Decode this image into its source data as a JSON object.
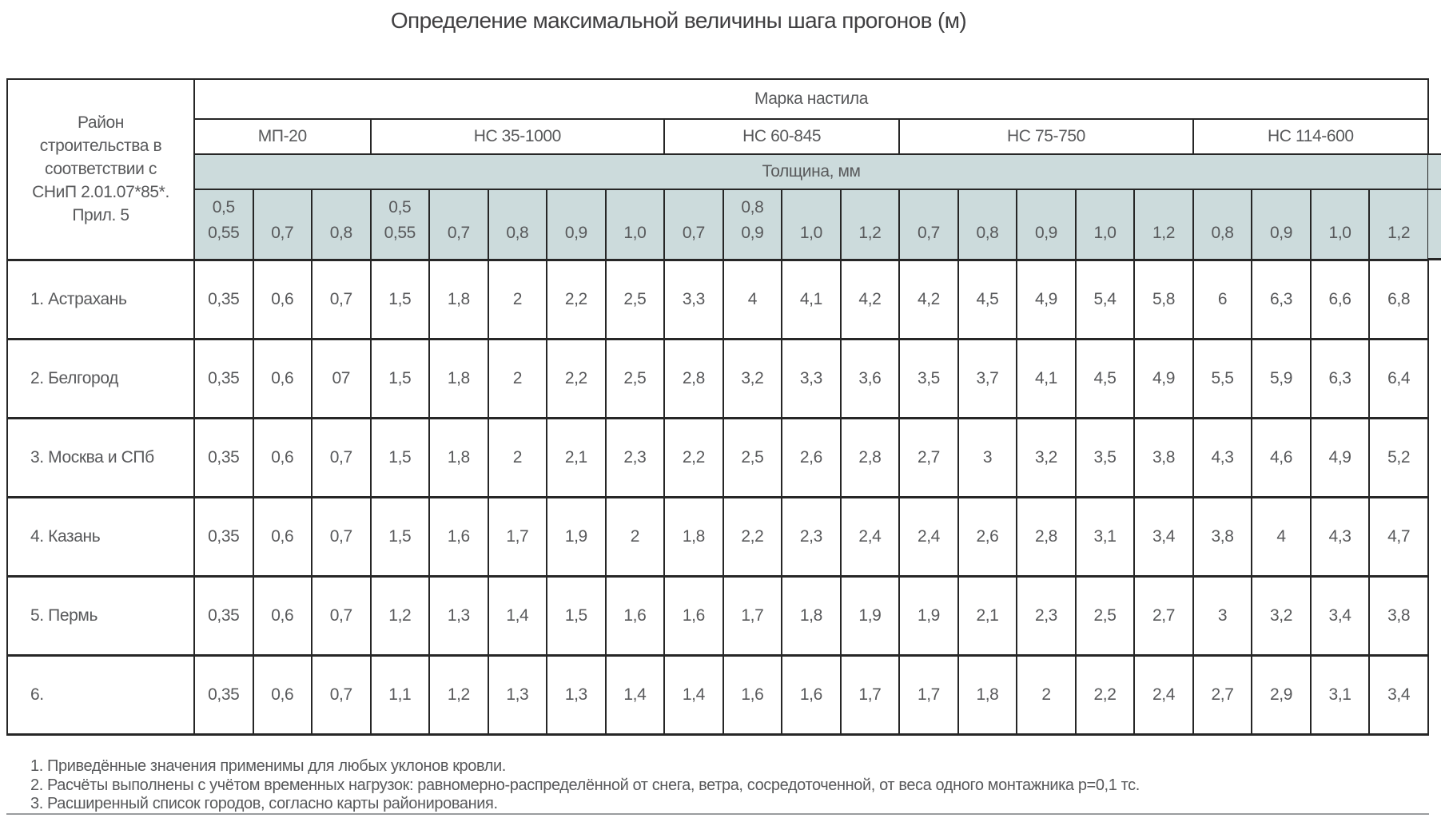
{
  "title": "Определение максимальной величины шага прогонов (м)",
  "table": {
    "row_header": "Район\nстроительства в\nсоответствии с\nСНиП 2.01.07*85*.\nПрил. 5",
    "top_header": "Марка настила",
    "thickness_header": "Толщина, мм",
    "groups": [
      {
        "label": "МП-20",
        "thicknesses": [
          "0,5\n0,55",
          "0,7",
          "0,8"
        ]
      },
      {
        "label": "НС 35-1000",
        "thicknesses": [
          "0,5\n0,55",
          "0,7",
          "0,8",
          "0,9",
          "1,0"
        ]
      },
      {
        "label": "НС 60-845",
        "thicknesses": [
          "0,7",
          "0,8\n0,9",
          "1,0",
          "1,2"
        ]
      },
      {
        "label": "НС 75-750",
        "thicknesses": [
          "0,7",
          "0,8",
          "0,9",
          "1,0",
          "1,2"
        ]
      },
      {
        "label": "НС 114-600",
        "thicknesses": [
          "0,8",
          "0,9",
          "1,0",
          "1,2"
        ]
      }
    ],
    "rows": [
      {
        "label": "1. Астрахань",
        "values": [
          "0,35",
          "0,6",
          "0,7",
          "1,5",
          "1,8",
          "2",
          "2,2",
          "2,5",
          "3,3",
          "4",
          "4,1",
          "4,2",
          "4,2",
          "4,5",
          "4,9",
          "5,4",
          "5,8",
          "6",
          "6,3",
          "6,6",
          "6,8"
        ]
      },
      {
        "label": "2. Белгород",
        "values": [
          "0,35",
          "0,6",
          "07",
          "1,5",
          "1,8",
          "2",
          "2,2",
          "2,5",
          "2,8",
          "3,2",
          "3,3",
          "3,6",
          "3,5",
          "3,7",
          "4,1",
          "4,5",
          "4,9",
          "5,5",
          "5,9",
          "6,3",
          "6,4"
        ]
      },
      {
        "label": "3. Москва и СПб",
        "values": [
          "0,35",
          "0,6",
          "0,7",
          "1,5",
          "1,8",
          "2",
          "2,1",
          "2,3",
          "2,2",
          "2,5",
          "2,6",
          "2,8",
          "2,7",
          "3",
          "3,2",
          "3,5",
          "3,8",
          "4,3",
          "4,6",
          "4,9",
          "5,2"
        ]
      },
      {
        "label": "4. Казань",
        "values": [
          "0,35",
          "0,6",
          "0,7",
          "1,5",
          "1,6",
          "1,7",
          "1,9",
          "2",
          "1,8",
          "2,2",
          "2,3",
          "2,4",
          "2,4",
          "2,6",
          "2,8",
          "3,1",
          "3,4",
          "3,8",
          "4",
          "4,3",
          "4,7"
        ]
      },
      {
        "label": "5. Пермь",
        "values": [
          "0,35",
          "0,6",
          "0,7",
          "1,2",
          "1,3",
          "1,4",
          "1,5",
          "1,6",
          "1,6",
          "1,7",
          "1,8",
          "1,9",
          "1,9",
          "2,1",
          "2,3",
          "2,5",
          "2,7",
          "3",
          "3,2",
          "3,4",
          "3,8"
        ]
      },
      {
        "label": "6.",
        "values": [
          "0,35",
          "0,6",
          "0,7",
          "1,1",
          "1,2",
          "1,3",
          "1,3",
          "1,4",
          "1,4",
          "1,6",
          "1,6",
          "1,7",
          "1,7",
          "1,8",
          "2",
          "2,2",
          "2,4",
          "2,7",
          "2,9",
          "3,1",
          "3,4"
        ]
      }
    ]
  },
  "footnotes": [
    "1. Приведённые значения применимы для любых уклонов кровли.",
    "2. Расчёты выполнены с учётом временных нагрузок: равномерно-распределённой от снега, ветра, сосредоточенной, от веса одного монтажника р=0,1 тс.",
    "3. Расширенный список городов, согласно карты районирования."
  ],
  "colors": {
    "header_band": "#ccdbdc",
    "border": "#262626",
    "text": "#58595b",
    "title_text": "#414042"
  }
}
